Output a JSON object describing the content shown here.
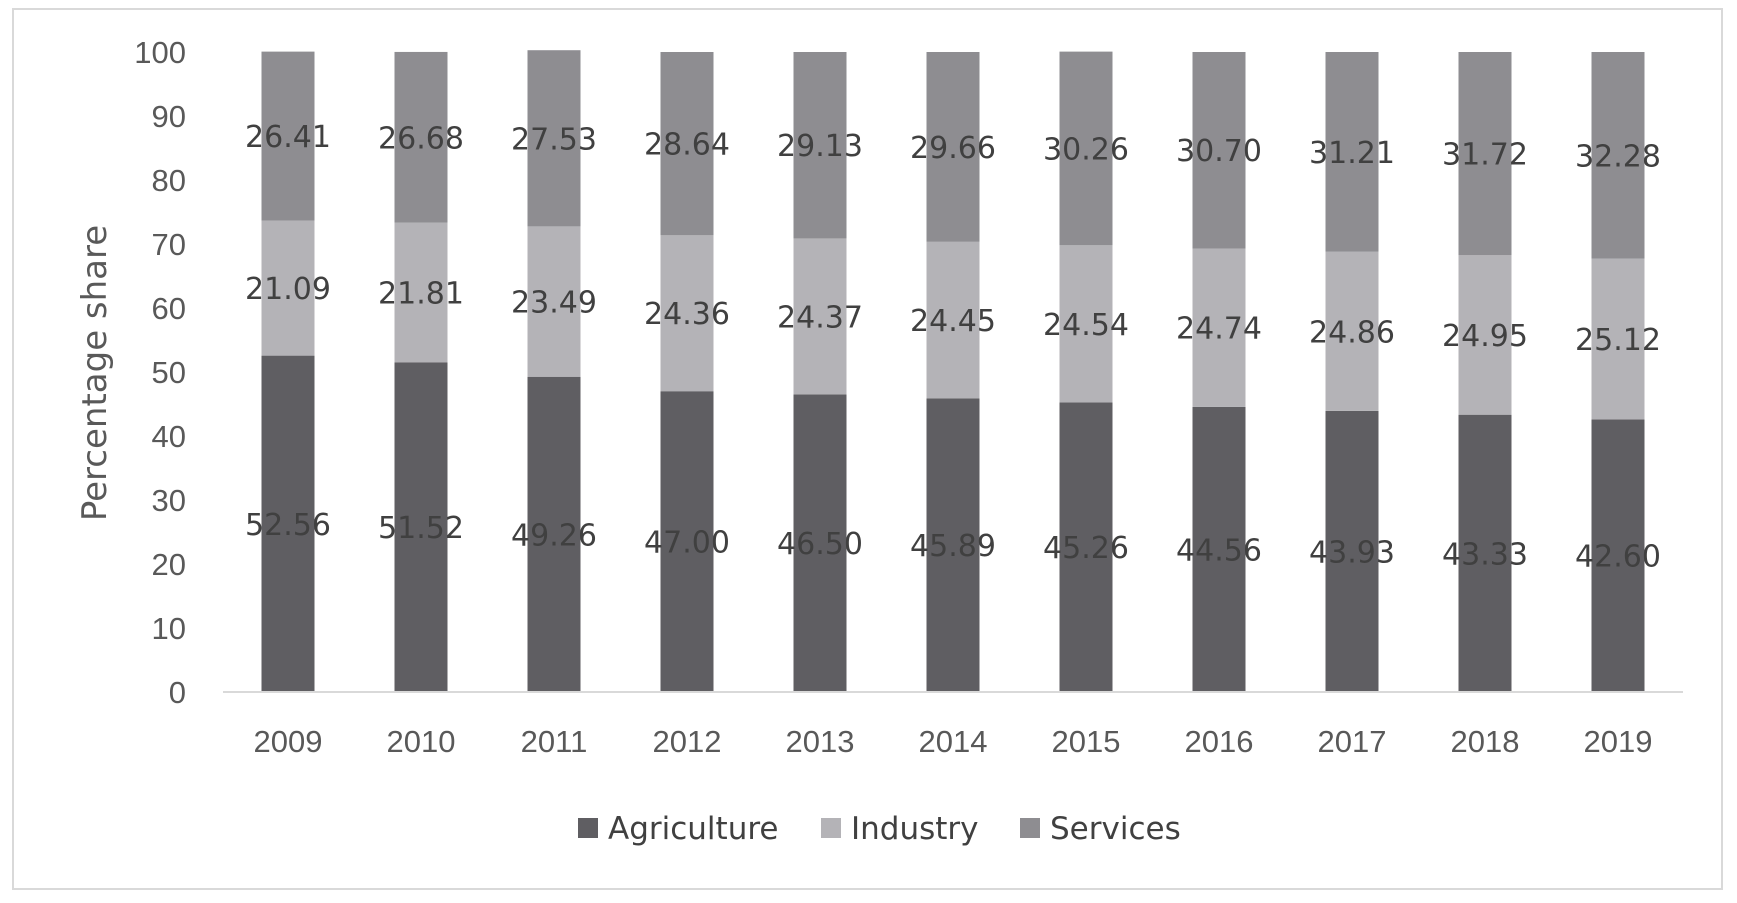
{
  "chart_data": {
    "type": "bar",
    "stacked": true,
    "categories": [
      "2009",
      "2010",
      "2011",
      "2012",
      "2013",
      "2014",
      "2015",
      "2016",
      "2017",
      "2018",
      "2019"
    ],
    "series": [
      {
        "name": "Agriculture",
        "color": "#5f5e62",
        "values": [
          52.56,
          51.52,
          49.26,
          47.0,
          46.5,
          45.89,
          45.26,
          44.56,
          43.93,
          43.33,
          42.6
        ],
        "labels": [
          "52.56",
          "51.52",
          "49.26",
          "47.00",
          "46.50",
          "45.89",
          "45.26",
          "44.56",
          "43.93",
          "43.33",
          "42.60"
        ]
      },
      {
        "name": "Industry",
        "color": "#b4b3b7",
        "values": [
          21.09,
          21.81,
          23.49,
          24.36,
          24.37,
          24.45,
          24.54,
          24.74,
          24.86,
          24.95,
          25.12
        ],
        "labels": [
          "21.09",
          "21.81",
          "23.49",
          "24.36",
          "24.37",
          "24.45",
          "24.54",
          "24.74",
          "24.86",
          "24.95",
          "25.12"
        ]
      },
      {
        "name": "Services",
        "color": "#8e8d91",
        "values": [
          26.41,
          26.68,
          27.53,
          28.64,
          29.13,
          29.66,
          30.26,
          30.7,
          31.21,
          31.72,
          32.28
        ],
        "labels": [
          "26.41",
          "26.68",
          "27.53",
          "28.64",
          "29.13",
          "29.66",
          "30.26",
          "30.70",
          "31.21",
          "31.72",
          "32.28"
        ]
      }
    ],
    "title": "",
    "xlabel": "",
    "ylabel": "Percentage share",
    "ylim": [
      0,
      100
    ],
    "yticks": [
      "0",
      "10",
      "20",
      "30",
      "40",
      "50",
      "60",
      "70",
      "80",
      "90",
      "100"
    ],
    "grid": false,
    "legend_position": "bottom"
  }
}
